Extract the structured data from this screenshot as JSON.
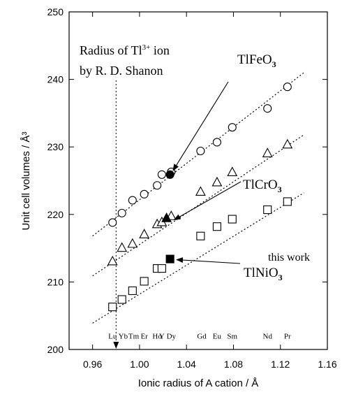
{
  "chart_data": {
    "type": "scatter",
    "xlabel": "Ionic radius of A cation / Å",
    "ylabel": "Unit cell volumes / Å³",
    "xlim": [
      0.94,
      1.16
    ],
    "ylim": [
      200,
      250
    ],
    "xticks": [
      0.96,
      1.0,
      1.04,
      1.08,
      1.12,
      1.16
    ],
    "xtick_labels": [
      "0.96",
      "1.00",
      "1.04",
      "1.08",
      "1.12",
      "1.16"
    ],
    "yticks": [
      200,
      210,
      220,
      230,
      240,
      250
    ],
    "ytick_labels": [
      "200",
      "210",
      "220",
      "230",
      "240",
      "250"
    ],
    "grid": false,
    "series": [
      {
        "name": "TlFeO3",
        "marker": "circle",
        "points": [
          [
            0.977,
            218.8
          ],
          [
            0.985,
            220.2
          ],
          [
            0.994,
            222.1
          ],
          [
            1.004,
            223.0
          ],
          [
            1.015,
            224.3
          ],
          [
            1.019,
            225.9
          ],
          [
            1.027,
            226.3
          ],
          [
            1.052,
            229.4
          ],
          [
            1.066,
            230.7
          ],
          [
            1.079,
            232.9
          ],
          [
            1.109,
            235.7
          ],
          [
            1.126,
            238.9
          ]
        ],
        "filled_points": [
          [
            1.026,
            225.9
          ]
        ],
        "trend": [
          [
            0.96,
            216.8
          ],
          [
            1.14,
            241.0
          ]
        ]
      },
      {
        "name": "TlCrO3",
        "marker": "triangle",
        "points": [
          [
            0.977,
            213.0
          ],
          [
            0.985,
            215.0
          ],
          [
            0.994,
            215.6
          ],
          [
            1.004,
            217.0
          ],
          [
            1.015,
            218.5
          ],
          [
            1.019,
            218.8
          ],
          [
            1.027,
            219.7
          ],
          [
            1.052,
            223.3
          ],
          [
            1.066,
            224.7
          ],
          [
            1.079,
            226.2
          ],
          [
            1.109,
            229.0
          ],
          [
            1.126,
            230.3
          ]
        ],
        "filled_points": [
          [
            1.023,
            219.4
          ]
        ],
        "trend": [
          [
            0.96,
            210.9
          ],
          [
            1.14,
            231.8
          ]
        ]
      },
      {
        "name": "TlNiO3",
        "marker": "square",
        "points": [
          [
            0.977,
            206.3
          ],
          [
            0.985,
            207.4
          ],
          [
            0.994,
            208.7
          ],
          [
            1.004,
            210.1
          ],
          [
            1.015,
            212.0
          ],
          [
            1.019,
            212.0
          ],
          [
            1.052,
            216.8
          ],
          [
            1.066,
            218.2
          ],
          [
            1.079,
            219.3
          ],
          [
            1.109,
            220.7
          ],
          [
            1.126,
            221.9
          ]
        ],
        "filled_points": [
          [
            1.026,
            213.4
          ]
        ],
        "trend": [
          [
            0.96,
            203.9
          ],
          [
            1.14,
            223.2
          ]
        ]
      }
    ],
    "element_labels": [
      {
        "text": "Lu",
        "x": 0.977
      },
      {
        "text": "Yb",
        "x": 0.986
      },
      {
        "text": "Tm",
        "x": 0.995
      },
      {
        "text": "Er",
        "x": 1.004
      },
      {
        "text": "Ho",
        "x": 1.015
      },
      {
        "text": "Y",
        "x": 1.019
      },
      {
        "text": "Dy",
        "x": 1.027
      },
      {
        "text": "Gd",
        "x": 1.053
      },
      {
        "text": "Eu",
        "x": 1.066
      },
      {
        "text": "Sm",
        "x": 1.079
      },
      {
        "text": "Nd",
        "x": 1.109
      },
      {
        "text": "Pr",
        "x": 1.126
      }
    ],
    "element_label_y": 201.6,
    "reference_line": {
      "x": 0.98,
      "label_line1": "Radius of Tl",
      "label_sup": "3+",
      "label_after": " ion",
      "label_line2": "by R. D. Shanon"
    },
    "annotations": [
      {
        "text": "TlFeO",
        "sub": "3",
        "target": [
          1.025,
          226.5
        ]
      },
      {
        "text": "TlCrO",
        "sub": "3",
        "target": [
          1.026,
          219.2
        ]
      },
      {
        "text": "TlNiO",
        "sub": "3",
        "target": [
          1.028,
          213.3
        ]
      },
      {
        "text": "this work"
      }
    ]
  }
}
